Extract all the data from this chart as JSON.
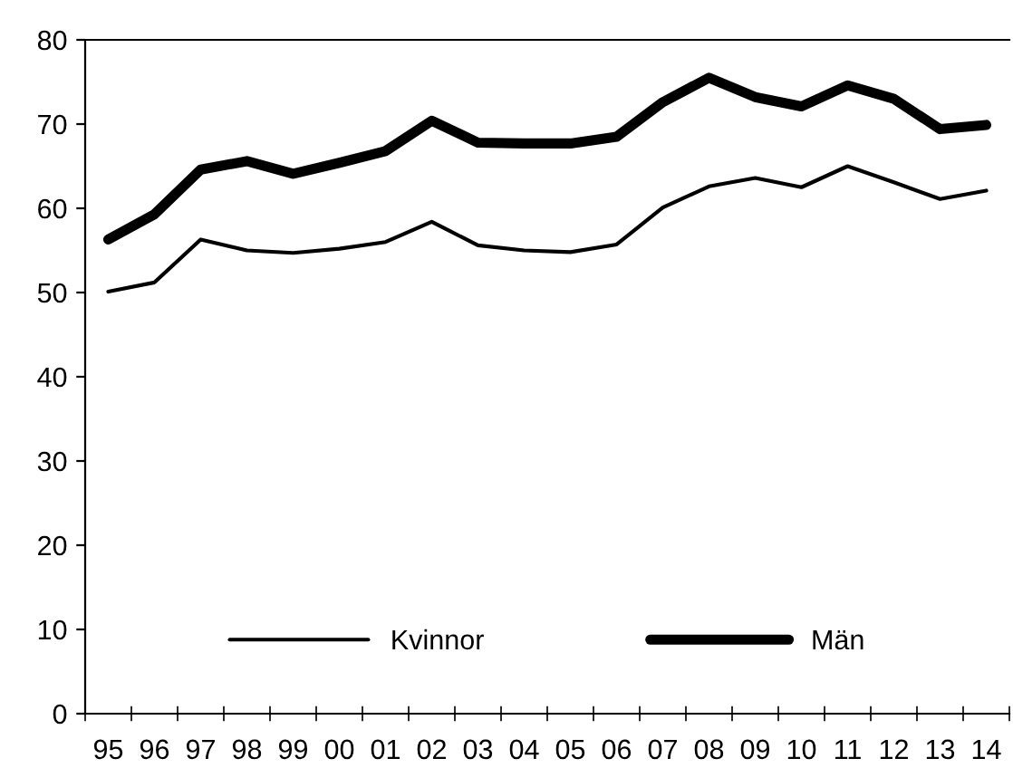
{
  "chart_data": {
    "type": "line",
    "categories": [
      "95",
      "96",
      "97",
      "98",
      "99",
      "00",
      "01",
      "02",
      "03",
      "04",
      "05",
      "06",
      "07",
      "08",
      "09",
      "10",
      "11",
      "12",
      "13",
      "14"
    ],
    "series": [
      {
        "name": "Kvinnor",
        "color": "#000000",
        "values": [
          50.1,
          51.2,
          56.3,
          55.0,
          54.7,
          55.2,
          56.0,
          58.4,
          55.6,
          55.0,
          54.8,
          55.7,
          60.1,
          62.6,
          63.6,
          62.5,
          65.0,
          63.1,
          61.1,
          62.1
        ]
      },
      {
        "name": "Män",
        "color": "#000000",
        "values": [
          56.3,
          59.3,
          64.6,
          65.6,
          64.1,
          65.4,
          66.8,
          70.4,
          67.8,
          67.7,
          67.7,
          68.5,
          72.6,
          75.5,
          73.2,
          72.1,
          74.6,
          73.0,
          69.4,
          69.9
        ]
      }
    ],
    "ylim": [
      0,
      80
    ],
    "yticks": [
      0,
      10,
      20,
      30,
      40,
      50,
      60,
      70,
      80
    ],
    "grid": false,
    "legend": "bottom",
    "marker": "none",
    "line_style": "solid"
  }
}
